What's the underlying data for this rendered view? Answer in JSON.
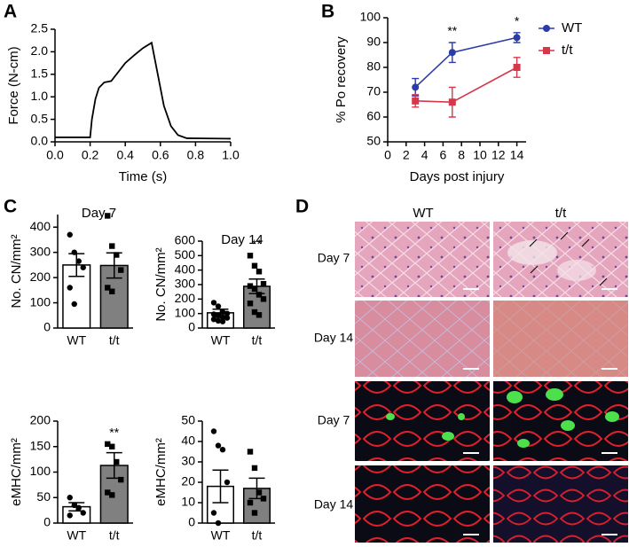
{
  "panel_labels": [
    "A",
    "B",
    "C",
    "D"
  ],
  "chart_data": [
    {
      "type": "line",
      "xlabel": "Time (s)",
      "ylabel": "Force (N-cm)",
      "color": "#000000",
      "x": [
        0,
        0.2,
        0.21,
        0.23,
        0.25,
        0.28,
        0.32,
        0.35,
        0.4,
        0.45,
        0.5,
        0.55,
        0.58,
        0.62,
        0.66,
        0.7,
        0.75,
        1.0
      ],
      "values": [
        0.1,
        0.1,
        0.5,
        0.95,
        1.2,
        1.32,
        1.35,
        1.5,
        1.75,
        1.92,
        2.08,
        2.2,
        1.6,
        0.8,
        0.35,
        0.15,
        0.08,
        0.07
      ],
      "xlim": [
        0,
        1
      ],
      "ylim": [
        0,
        2.5
      ],
      "xticks": [
        {
          "value": 0,
          "label": "0.0"
        },
        0.2,
        0.4,
        0.6,
        0.8,
        {
          "value": 1,
          "label": "1.0"
        }
      ],
      "yticks": [
        {
          "value": 0,
          "label": "0.0"
        },
        0.5,
        {
          "value": 1,
          "label": "1.0"
        },
        1.5,
        {
          "value": 2,
          "label": "2.0"
        },
        2.5
      ]
    },
    {
      "type": "line",
      "xlabel": "Days post injury",
      "ylabel": "% Po recovery",
      "legend": "right",
      "x": [
        3,
        7,
        14
      ],
      "series": [
        {
          "name": "WT",
          "color": "#2b3ba8",
          "marker": "circle",
          "values": [
            72,
            86,
            92
          ],
          "errors": [
            3.5,
            4,
            2
          ]
        },
        {
          "name": "t/t",
          "color": "#d6374a",
          "marker": "square",
          "values": [
            66.5,
            66,
            80
          ],
          "errors": [
            2.5,
            6,
            4
          ]
        }
      ],
      "annotations": [
        {
          "x": 7,
          "text": "**"
        },
        {
          "x": 14,
          "text": "*"
        }
      ],
      "xlim": [
        0,
        15
      ],
      "ylim": [
        50,
        100
      ],
      "xticks": [
        0,
        2,
        4,
        6,
        8,
        10,
        12,
        14
      ],
      "yticks": [
        50,
        60,
        70,
        80,
        90,
        100
      ]
    },
    {
      "type": "bar",
      "title": "Day 7",
      "ylabel": "No. CN/mm²",
      "categories": [
        "WT",
        "t/t"
      ],
      "values": [
        250,
        248
      ],
      "errors": [
        45,
        50
      ],
      "colors": [
        "#ffffff",
        "#808080"
      ],
      "markers": [
        "circle",
        "square"
      ],
      "points": [
        [
          370,
          300,
          265,
          240,
          160,
          95
        ],
        [
          445,
          325,
          290,
          230,
          160,
          145
        ]
      ],
      "ylim": [
        0,
        450
      ],
      "yticks": [
        0,
        100,
        200,
        300,
        400
      ]
    },
    {
      "type": "bar",
      "title": "Day 14",
      "ylabel": "No. CN/mm²",
      "categories": [
        "WT",
        "t/t"
      ],
      "values": [
        105,
        288
      ],
      "errors": [
        25,
        50
      ],
      "colors": [
        "#ffffff",
        "#808080"
      ],
      "markers": [
        "circle",
        "square"
      ],
      "points": [
        [
          175,
          150,
          110,
          100,
          95,
          85,
          75,
          70,
          60,
          50,
          45
        ],
        [
          500,
          430,
          390,
          305,
          290,
          270,
          230,
          200,
          170,
          110,
          90
        ]
      ],
      "annotations": [
        {
          "category": "t/t",
          "text": "**"
        }
      ],
      "ylim": [
        0,
        600
      ],
      "yticks": [
        0,
        100,
        200,
        300,
        400,
        500,
        600
      ]
    },
    {
      "type": "bar",
      "ylabel": "eMHC/mm²",
      "categories": [
        "WT",
        "t/t"
      ],
      "values": [
        32,
        113
      ],
      "errors": [
        8,
        25
      ],
      "colors": [
        "#ffffff",
        "#808080"
      ],
      "markers": [
        "circle",
        "square"
      ],
      "points": [
        [
          50,
          35,
          30,
          20,
          15
        ],
        [
          155,
          150,
          120,
          85,
          60,
          55
        ]
      ],
      "annotations": [
        {
          "category": "t/t",
          "text": "**"
        }
      ],
      "ylim": [
        0,
        200
      ],
      "yticks": [
        0,
        50,
        100,
        150,
        200
      ]
    },
    {
      "type": "bar",
      "ylabel": "eMHC/mm²",
      "categories": [
        "WT",
        "t/t"
      ],
      "values": [
        18,
        17
      ],
      "errors": [
        8,
        5
      ],
      "colors": [
        "#ffffff",
        "#808080"
      ],
      "markers": [
        "circle",
        "square"
      ],
      "points": [
        [
          45,
          38,
          36,
          20,
          5,
          0
        ],
        [
          35,
          27,
          15,
          12,
          10,
          5
        ]
      ],
      "ylim": [
        0,
        50
      ],
      "yticks": [
        0,
        10,
        20,
        30,
        40,
        50
      ]
    }
  ],
  "histology": {
    "columns": [
      "WT",
      "t/t"
    ],
    "rows": [
      "Day 7",
      "Day 14",
      "Day 7",
      "Day 14"
    ]
  }
}
